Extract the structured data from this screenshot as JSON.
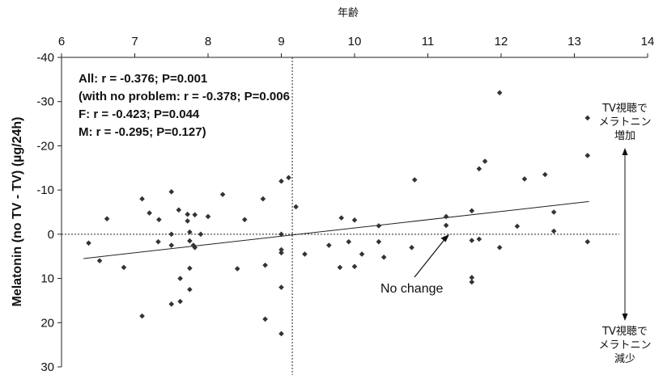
{
  "chart_data": {
    "type": "scatter",
    "title": "",
    "xlabel": "年齢",
    "ylabel": "Melatonin (no TV - TV) (µg/24h)",
    "x_axis_position": "top",
    "y_axis_inverted": true,
    "xlim": [
      6,
      14
    ],
    "ylim": [
      -40,
      30
    ],
    "x_ticks": [
      6,
      7,
      8,
      9,
      10,
      11,
      12,
      13,
      14
    ],
    "y_ticks": [
      -40,
      -30,
      -20,
      -10,
      0,
      10,
      20,
      30
    ],
    "x_tick_labels": [
      "6",
      "7",
      "8",
      "9",
      "10",
      "11",
      "12",
      "13",
      "14"
    ],
    "y_tick_labels": [
      "-40",
      "-30",
      "-20",
      "-10",
      "0",
      "10",
      "20",
      "30"
    ],
    "grid": false,
    "legend": "none",
    "reference_lines": {
      "vertical_x": 9.15,
      "horizontal_y": 0
    },
    "trendline": {
      "x": [
        6.3,
        13.2
      ],
      "y": [
        5.5,
        -7.4
      ]
    },
    "stats": [
      "All: r = -0.376; P=0.001",
      "(with no problem: r = -0.378; P=0.006",
      "F: r = -0.423; P=0.044",
      "M: r = -0.295; P=0.127)"
    ],
    "annotations": {
      "no_change": "No change",
      "up_label": [
        "TV視聴で",
        "メラトニン",
        "増加"
      ],
      "down_label": [
        "TV視聴で",
        "メラトニン",
        "減少"
      ]
    },
    "marker_color": "#333333",
    "points": [
      {
        "x": 6.37,
        "y": 2.0
      },
      {
        "x": 6.52,
        "y": 6.0
      },
      {
        "x": 6.62,
        "y": -3.5
      },
      {
        "x": 6.85,
        "y": 7.5
      },
      {
        "x": 7.1,
        "y": -8.0
      },
      {
        "x": 7.1,
        "y": 18.5
      },
      {
        "x": 7.2,
        "y": -4.8
      },
      {
        "x": 7.33,
        "y": -3.3
      },
      {
        "x": 7.32,
        "y": 1.7
      },
      {
        "x": 7.5,
        "y": -9.6
      },
      {
        "x": 7.5,
        "y": 0.0
      },
      {
        "x": 7.5,
        "y": 2.5
      },
      {
        "x": 7.5,
        "y": 15.8
      },
      {
        "x": 7.6,
        "y": -5.5
      },
      {
        "x": 7.62,
        "y": 10.0
      },
      {
        "x": 7.62,
        "y": 15.2
      },
      {
        "x": 7.72,
        "y": -4.5
      },
      {
        "x": 7.72,
        "y": -3.0
      },
      {
        "x": 7.75,
        "y": -0.5
      },
      {
        "x": 7.75,
        "y": 1.5
      },
      {
        "x": 7.75,
        "y": 7.7
      },
      {
        "x": 7.75,
        "y": 12.5
      },
      {
        "x": 7.8,
        "y": 2.5
      },
      {
        "x": 7.82,
        "y": -4.4
      },
      {
        "x": 7.82,
        "y": 3.0
      },
      {
        "x": 7.9,
        "y": 0.0
      },
      {
        "x": 8.0,
        "y": -4.0
      },
      {
        "x": 8.2,
        "y": -9.0
      },
      {
        "x": 8.4,
        "y": 7.8
      },
      {
        "x": 8.5,
        "y": -3.3
      },
      {
        "x": 8.75,
        "y": -8.0
      },
      {
        "x": 8.78,
        "y": 7.0
      },
      {
        "x": 8.78,
        "y": 19.2
      },
      {
        "x": 9.0,
        "y": -12.0
      },
      {
        "x": 9.0,
        "y": 0.0
      },
      {
        "x": 9.0,
        "y": 3.5
      },
      {
        "x": 9.0,
        "y": 4.2
      },
      {
        "x": 9.0,
        "y": 12.0
      },
      {
        "x": 9.0,
        "y": 22.5
      },
      {
        "x": 9.1,
        "y": -12.8
      },
      {
        "x": 9.2,
        "y": -6.2
      },
      {
        "x": 9.32,
        "y": 4.5
      },
      {
        "x": 9.65,
        "y": 2.5
      },
      {
        "x": 9.8,
        "y": 7.5
      },
      {
        "x": 9.82,
        "y": -3.7
      },
      {
        "x": 9.92,
        "y": 1.7
      },
      {
        "x": 10.0,
        "y": -3.2
      },
      {
        "x": 10.0,
        "y": 7.3
      },
      {
        "x": 10.1,
        "y": 4.5
      },
      {
        "x": 10.33,
        "y": -1.9
      },
      {
        "x": 10.33,
        "y": 1.7
      },
      {
        "x": 10.4,
        "y": 5.2
      },
      {
        "x": 10.78,
        "y": 3.0
      },
      {
        "x": 10.82,
        "y": -12.3
      },
      {
        "x": 11.25,
        "y": -4.0
      },
      {
        "x": 11.25,
        "y": -2.0
      },
      {
        "x": 11.6,
        "y": -5.3
      },
      {
        "x": 11.6,
        "y": 1.4
      },
      {
        "x": 11.6,
        "y": 9.8
      },
      {
        "x": 11.6,
        "y": 10.8
      },
      {
        "x": 11.7,
        "y": -14.8
      },
      {
        "x": 11.7,
        "y": 1.1
      },
      {
        "x": 11.78,
        "y": -16.5
      },
      {
        "x": 11.98,
        "y": -32.0
      },
      {
        "x": 11.98,
        "y": 3.0
      },
      {
        "x": 12.22,
        "y": -1.8
      },
      {
        "x": 12.32,
        "y": -12.5
      },
      {
        "x": 12.6,
        "y": -13.5
      },
      {
        "x": 12.72,
        "y": -5.0
      },
      {
        "x": 12.72,
        "y": -0.7
      },
      {
        "x": 13.18,
        "y": -26.3
      },
      {
        "x": 13.18,
        "y": -17.8
      },
      {
        "x": 13.18,
        "y": 1.7
      }
    ]
  }
}
